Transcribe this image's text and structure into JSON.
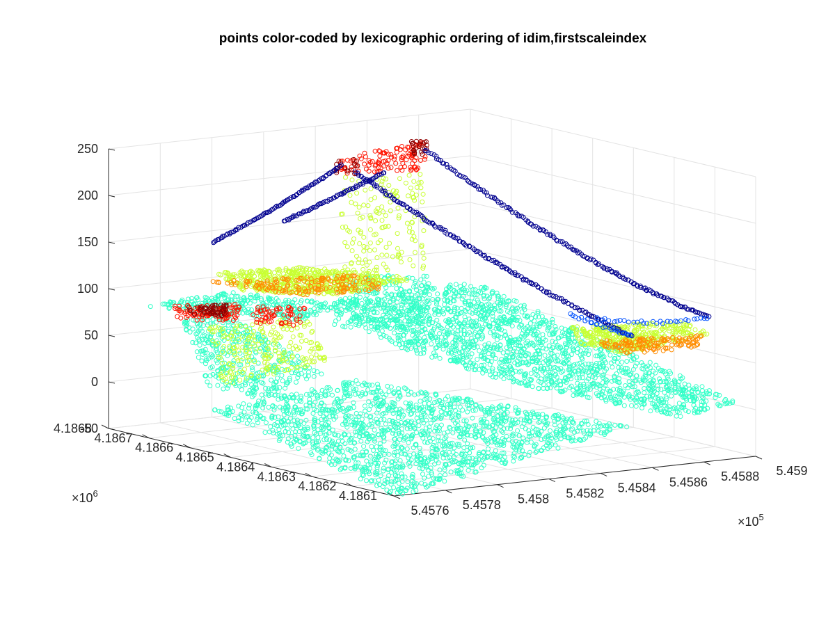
{
  "chart_data": {
    "type": "scatter",
    "projection": "3d",
    "title": "points color-coded by lexicographic ordering of idim,firstscaleindex",
    "grid": true,
    "marker": "open-circle",
    "x_axis": {
      "ticks": [
        "5.4576",
        "5.4578",
        "5.458",
        "5.4582",
        "5.4584",
        "5.4586",
        "5.4588",
        "5.459"
      ],
      "exponent": "×10",
      "exponent_power": "5",
      "range": [
        545760,
        545900
      ]
    },
    "y_axis": {
      "ticks": [
        "4.1861",
        "4.1862",
        "4.1863",
        "4.1864",
        "4.1865",
        "4.1866",
        "4.1867",
        "4.1868"
      ],
      "exponent": "×10",
      "exponent_power": "6",
      "range": [
        4186100,
        4186800
      ]
    },
    "z_axis": {
      "ticks": [
        "-50",
        "0",
        "50",
        "100",
        "150",
        "200",
        "250"
      ],
      "range": [
        -50,
        250
      ]
    },
    "colors": {
      "navy": "#00008f",
      "blue": "#0050ff",
      "cyan": "#32ffc8",
      "yellowgreen": "#c8ff32",
      "orange": "#ff8c00",
      "red": "#ff1400",
      "darkred": "#8f0000"
    },
    "series": [
      {
        "color": "cyan",
        "shape": "ground-slab-near",
        "z": -35,
        "density": "dense"
      },
      {
        "color": "cyan",
        "shape": "bridge-deck-main",
        "z": 60,
        "density": "dense"
      },
      {
        "color": "yellowgreen",
        "shape": "deck-left",
        "z": 75,
        "density": "dense"
      },
      {
        "color": "navy",
        "shape": "cable-curves",
        "z": [
          60,
          245
        ],
        "density": "line"
      },
      {
        "color": "red",
        "shape": "tower-tops",
        "z": 230,
        "density": "cluster"
      }
    ]
  }
}
